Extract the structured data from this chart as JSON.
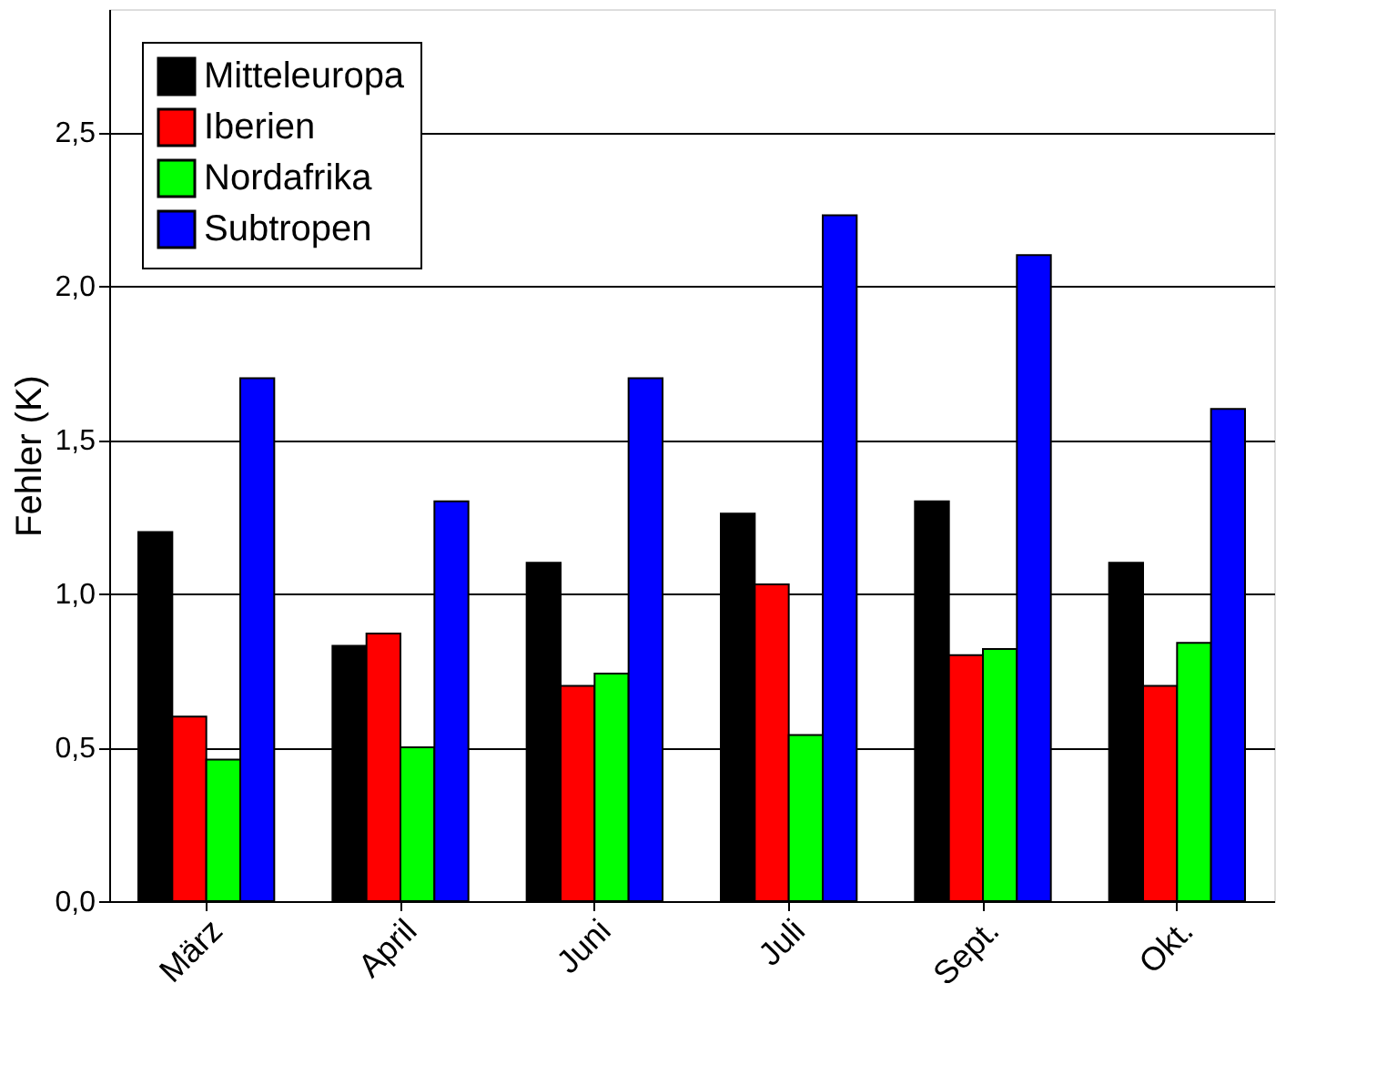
{
  "chart_data": {
    "type": "bar",
    "ylabel": "Fehler (K)",
    "categories": [
      "März",
      "April",
      "Juni",
      "Juli",
      "Sept.",
      "Okt."
    ],
    "series": [
      {
        "name": "Mitteleuropa",
        "color": "#000000",
        "values": [
          1.2,
          0.83,
          1.1,
          1.26,
          1.3,
          1.1
        ]
      },
      {
        "name": "Iberien",
        "color": "#ff0000",
        "values": [
          0.6,
          0.87,
          0.7,
          1.03,
          0.8,
          0.7
        ]
      },
      {
        "name": "Nordafrika",
        "color": "#00ff00",
        "values": [
          0.46,
          0.5,
          0.74,
          0.54,
          0.82,
          0.84
        ]
      },
      {
        "name": "Subtropen",
        "color": "#0000ff",
        "values": [
          1.7,
          1.3,
          1.7,
          2.23,
          2.1,
          1.6
        ]
      }
    ],
    "ylim": [
      0,
      2.9
    ],
    "yticks": [
      {
        "value": 0,
        "label": "0,0"
      },
      {
        "value": 0.5,
        "label": "0,5"
      },
      {
        "value": 1,
        "label": "1,0"
      },
      {
        "value": 1.5,
        "label": "1,5"
      },
      {
        "value": 2,
        "label": "2,0"
      },
      {
        "value": 2.5,
        "label": "2,5"
      }
    ],
    "grid": "y",
    "legend": "top left"
  }
}
